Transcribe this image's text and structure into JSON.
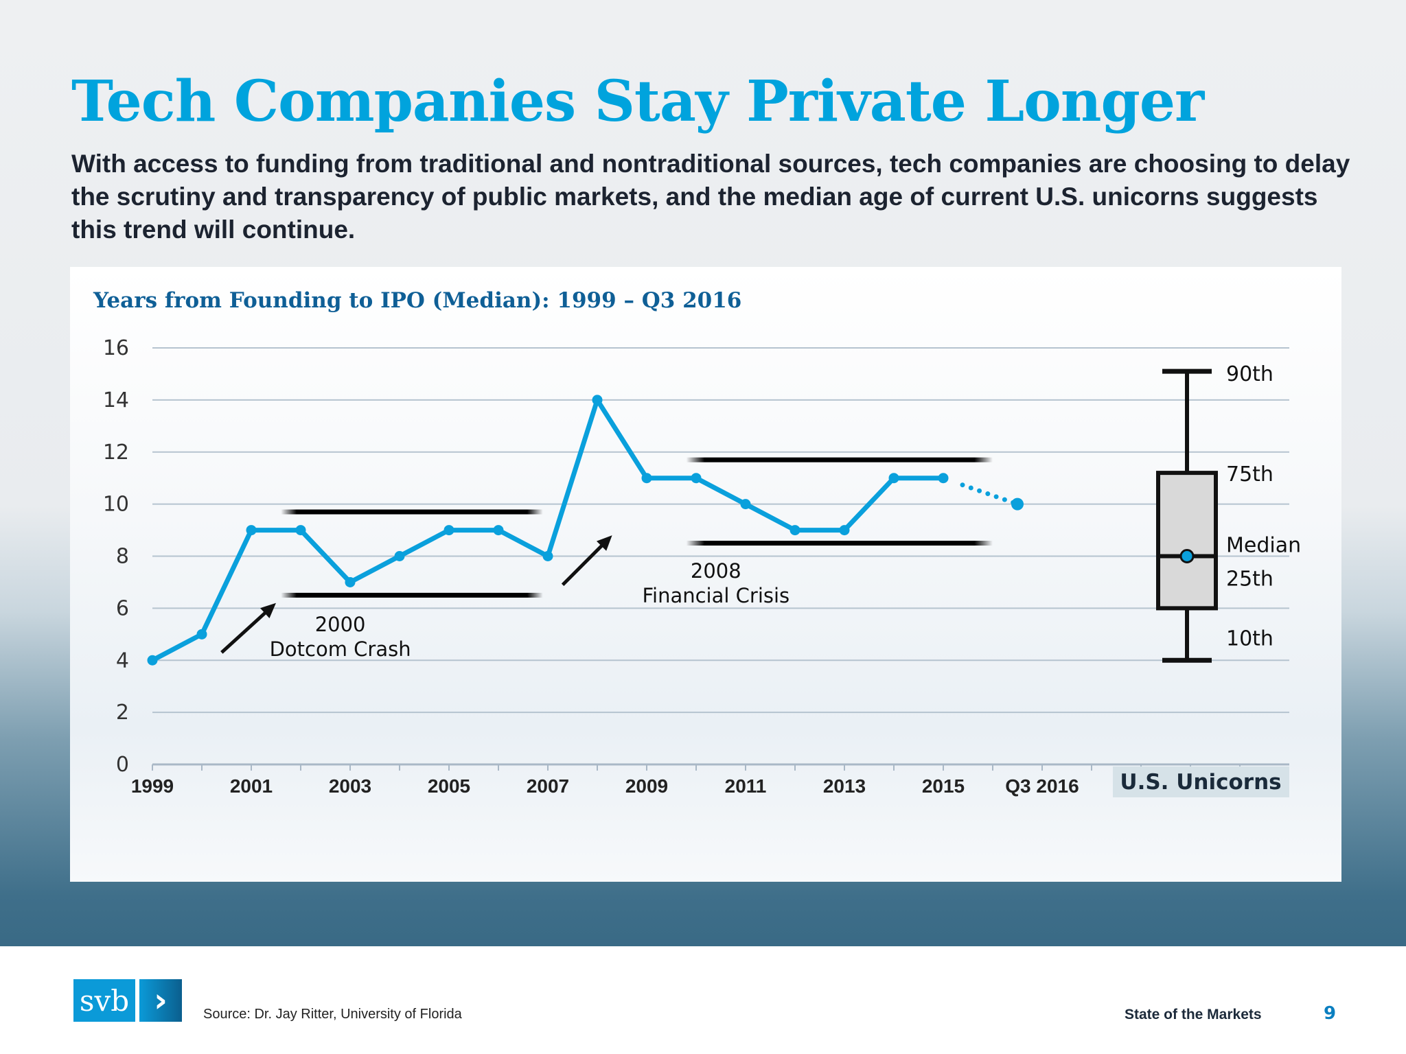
{
  "header": {
    "title": "Tech Companies Stay Private Longer",
    "subtitle": "With access to funding from traditional and nontraditional sources, tech companies are choosing to delay the scrutiny and transparency of public markets, and the median age of current U.S. unicorns suggests this trend will continue."
  },
  "chart_data": {
    "type": "line",
    "title": "Years from Founding to IPO (Median): 1999 – Q3 2016",
    "xlabel": "",
    "ylabel": "",
    "ylim": [
      0,
      16
    ],
    "yticks": [
      0,
      2,
      4,
      6,
      8,
      10,
      12,
      14,
      16
    ],
    "grid": true,
    "x_tick_labels": [
      "1999",
      "2001",
      "2003",
      "2005",
      "2007",
      "2009",
      "2011",
      "2013",
      "2015",
      "Q3 2016"
    ],
    "series": [
      {
        "categories": [
          "1999",
          "2000",
          "2001",
          "2002",
          "2003",
          "2004",
          "2005",
          "2006",
          "2007",
          "2008",
          "2009",
          "2010",
          "2011",
          "2012",
          "2013",
          "2014",
          "2015"
        ],
        "values": [
          4,
          5,
          9,
          9,
          7,
          8,
          9,
          9,
          8,
          14,
          11,
          11,
          10,
          9,
          9,
          11,
          11
        ],
        "color": "#0aa0dc"
      },
      {
        "categories": [
          "2015",
          "Q3 2016"
        ],
        "values": [
          11,
          10
        ],
        "style": "dotted",
        "color": "#0aa0dc"
      }
    ],
    "annotations": [
      {
        "line1": "2000",
        "line2": "Dotcom Crash",
        "band": [
          6.5,
          9.7
        ]
      },
      {
        "line1": "2008",
        "line2": "Financial Crisis",
        "band": [
          8.5,
          11.7
        ]
      }
    ],
    "boxplot": {
      "label": "U.S. Unicorns",
      "p10": 4,
      "p25": 6,
      "median": 8,
      "p75": 11.2,
      "p90": 15.1,
      "labels": {
        "p90": "90th",
        "p75": "75th",
        "median": "Median",
        "p25": "25th",
        "p10": "10th"
      },
      "fill": "#d9d9d9"
    }
  },
  "footer": {
    "logo_text": "svb",
    "source": "Source: Dr. Jay Ritter, University of Florida",
    "brand": "State of the Markets",
    "page_number": "9"
  }
}
